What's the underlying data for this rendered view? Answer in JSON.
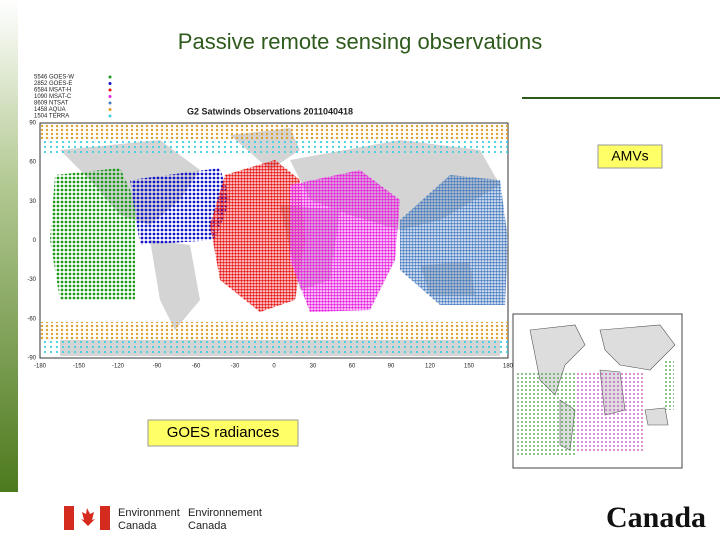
{
  "title": "Passive remote sensing observations",
  "labels": {
    "amvs": "AMVs",
    "goes": "GOES radiances"
  },
  "map": {
    "title": "G2 Satwinds Observations 2011040418",
    "legend": [
      "5546 GOES-W",
      "2852 GOES-E",
      "6584 MSAT-H",
      "1090 MSAT-C",
      "8609 NTSAT",
      "1458 AQUA",
      "1504 TERRA"
    ],
    "y_axis": [
      "90",
      "60",
      "30",
      "0",
      "-30",
      "-60",
      "-90"
    ],
    "x_axis": [
      "-180",
      "-150",
      "-120",
      "-90",
      "-60",
      "-30",
      "0",
      "30",
      "60",
      "90",
      "120",
      "150",
      "180"
    ]
  },
  "footer": {
    "en": [
      "Environment",
      "Canada"
    ],
    "fr": [
      "Environnement",
      "Canada"
    ],
    "wordmark": "Canada"
  }
}
